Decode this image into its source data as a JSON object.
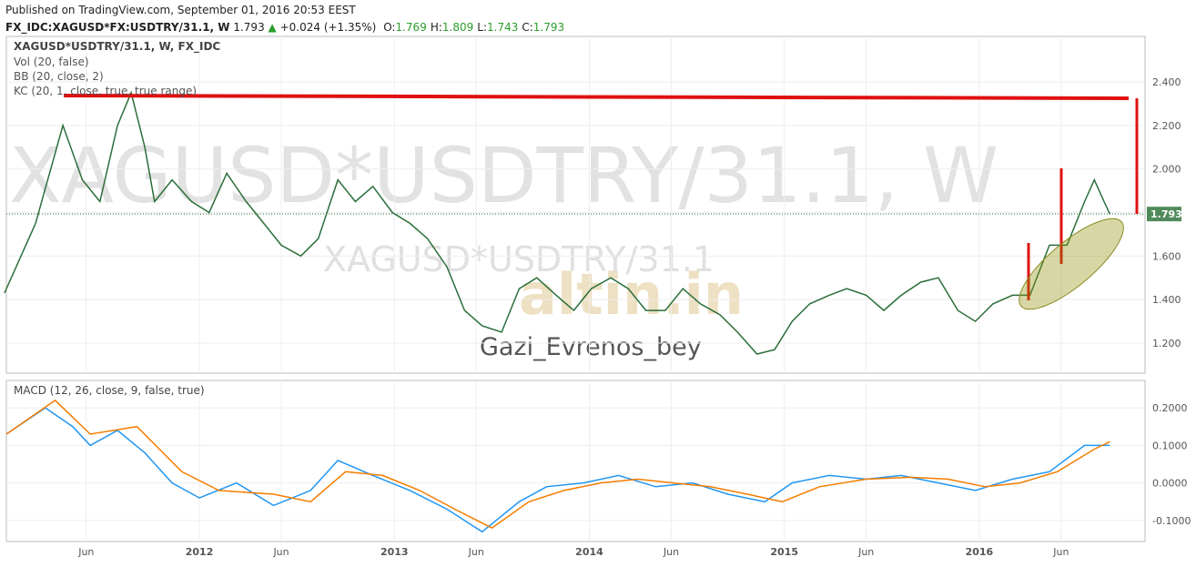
{
  "header": {
    "published": "Published on TradingView.com, September 01, 2016 20:53 EEST",
    "symbol": "FX_IDC:XAGUSD*FX:USDTRY/31.1, W",
    "last": "1.793",
    "change": "+0.024 (+1.35%)",
    "ohlc": [
      [
        "O:",
        "1.769"
      ],
      [
        "H:",
        "1.809"
      ],
      [
        "L:",
        "1.743"
      ],
      [
        "C:",
        "1.793"
      ]
    ]
  },
  "chart_data": [
    {
      "type": "line",
      "title": "XAGUSD*USDTRY/31.1, W, FX_IDC",
      "indicators": [
        "Vol (20, false)",
        "BB (20, close, 2)",
        "KC (20, 1, close, true, true range)"
      ],
      "watermark": "XAGUSD*USDTRY/31.1, W",
      "watermark2": "XAGUSD*USDTRY/31.1",
      "author": "Gazi_Evrenos_bey",
      "logo": "altin.in",
      "series": [
        {
          "color": "#2a6e3a",
          "x": [
            2011.0,
            2011.16,
            2011.3,
            2011.4,
            2011.49,
            2011.58,
            2011.65,
            2011.72,
            2011.77,
            2011.86,
            2011.96,
            2012.05,
            2012.14,
            2012.24,
            2012.33,
            2012.42,
            2012.52,
            2012.61,
            2012.71,
            2012.8,
            2012.89,
            2012.99,
            2013.08,
            2013.17,
            2013.27,
            2013.36,
            2013.45,
            2013.55,
            2013.64,
            2013.73,
            2013.83,
            2013.92,
            2014.01,
            2014.11,
            2014.2,
            2014.29,
            2014.39,
            2014.48,
            2014.57,
            2014.67,
            2014.76,
            2014.86,
            2014.95,
            2015.04,
            2015.13,
            2015.23,
            2015.32,
            2015.42,
            2015.51,
            2015.6,
            2015.7,
            2015.79,
            2015.89,
            2015.98,
            2016.07,
            2016.17,
            2016.26,
            2016.36,
            2016.45,
            2016.54,
            2016.59,
            2016.64,
            2016.67
          ],
          "values": [
            1.43,
            1.75,
            2.2,
            1.95,
            1.85,
            2.2,
            2.35,
            2.1,
            1.85,
            1.95,
            1.85,
            1.8,
            1.98,
            1.85,
            1.75,
            1.65,
            1.6,
            1.68,
            1.95,
            1.85,
            1.92,
            1.8,
            1.75,
            1.68,
            1.55,
            1.35,
            1.28,
            1.25,
            1.45,
            1.5,
            1.42,
            1.35,
            1.45,
            1.5,
            1.45,
            1.35,
            1.35,
            1.45,
            1.38,
            1.33,
            1.25,
            1.15,
            1.17,
            1.3,
            1.38,
            1.42,
            1.45,
            1.42,
            1.35,
            1.42,
            1.48,
            1.5,
            1.35,
            1.3,
            1.38,
            1.42,
            1.42,
            1.65,
            1.65,
            1.85,
            1.95,
            1.85,
            1.793
          ]
        }
      ],
      "last_value": {
        "value": 1.793,
        "label": "1.793"
      },
      "xlim": [
        2011.01,
        2016.85
      ],
      "xticks": [
        2011.42,
        2012,
        2012.42,
        2013,
        2013.42,
        2014,
        2014.42,
        2015,
        2015.42,
        2016,
        2016.42
      ],
      "ylim": [
        1.062,
        2.609
      ],
      "yticks": [
        {
          "value": 1.2,
          "label": "1.200"
        },
        {
          "value": 1.4,
          "label": "1.400"
        },
        {
          "value": 1.6,
          "label": "1.600"
        },
        {
          "value": 1.8,
          "label": "1.800"
        },
        {
          "value": 2.0,
          "label": "2.000"
        },
        {
          "value": 2.2,
          "label": "2.200"
        },
        {
          "value": 2.4,
          "label": "2.400"
        }
      ],
      "grid": true
    },
    {
      "type": "line",
      "title": "MACD (12, 26, close, 9, false, true)",
      "series": [
        {
          "color": "#2196f3",
          "x": [
            2011.01,
            2011.21,
            2011.35,
            2011.44,
            2011.58,
            2011.72,
            2011.86,
            2012.0,
            2012.19,
            2012.38,
            2012.57,
            2012.71,
            2012.89,
            2013.08,
            2013.27,
            2013.45,
            2013.64,
            2013.78,
            2013.97,
            2014.15,
            2014.34,
            2014.53,
            2014.71,
            2014.9,
            2015.04,
            2015.23,
            2015.42,
            2015.6,
            2015.79,
            2015.98,
            2016.17,
            2016.36,
            2016.54,
            2016.67
          ],
          "values": [
            0.13,
            0.2,
            0.15,
            0.1,
            0.14,
            0.08,
            0.0,
            -0.04,
            0.0,
            -0.06,
            -0.02,
            0.06,
            0.02,
            -0.02,
            -0.07,
            -0.13,
            -0.05,
            -0.01,
            0.0,
            0.02,
            -0.01,
            0.0,
            -0.03,
            -0.05,
            0.0,
            0.02,
            0.01,
            0.02,
            0.0,
            -0.02,
            0.01,
            0.03,
            0.1,
            0.1
          ]
        },
        {
          "color": "#f57c00",
          "x": [
            2011.01,
            2011.26,
            2011.44,
            2011.68,
            2011.91,
            2012.1,
            2012.38,
            2012.57,
            2012.75,
            2012.94,
            2013.13,
            2013.31,
            2013.5,
            2013.69,
            2013.87,
            2014.06,
            2014.25,
            2014.43,
            2014.62,
            2014.81,
            2014.99,
            2015.18,
            2015.42,
            2015.65,
            2015.84,
            2016.03,
            2016.21,
            2016.4,
            2016.59,
            2016.67
          ],
          "values": [
            0.13,
            0.22,
            0.13,
            0.15,
            0.03,
            -0.02,
            -0.03,
            -0.05,
            0.03,
            0.02,
            -0.02,
            -0.07,
            -0.12,
            -0.05,
            -0.02,
            0.0,
            0.01,
            0.0,
            -0.01,
            -0.03,
            -0.05,
            -0.01,
            0.01,
            0.015,
            0.01,
            -0.01,
            0.0,
            0.03,
            0.09,
            0.11
          ]
        }
      ],
      "xlim": [
        2011.01,
        2016.85
      ],
      "xticks": [
        {
          "value": 2011.42,
          "label": "Jun"
        },
        2012,
        {
          "value": 2012.42,
          "label": "Jun"
        },
        2013,
        {
          "value": 2013.42,
          "label": "Jun"
        },
        2014,
        {
          "value": 2014.42,
          "label": "Jun"
        },
        2015,
        {
          "value": 2015.42,
          "label": "Jun"
        },
        2016,
        {
          "value": 2016.42,
          "label": "Jun"
        }
      ],
      "ylim": [
        -0.156,
        0.273
      ],
      "yticks": [
        {
          "value": -0.1,
          "label": "-0.1000"
        },
        {
          "value": 0,
          "label": "0.0000"
        },
        {
          "value": 0.1,
          "label": "0.1000"
        },
        {
          "value": 0.2,
          "label": "0.2000"
        }
      ],
      "grid": true
    }
  ]
}
